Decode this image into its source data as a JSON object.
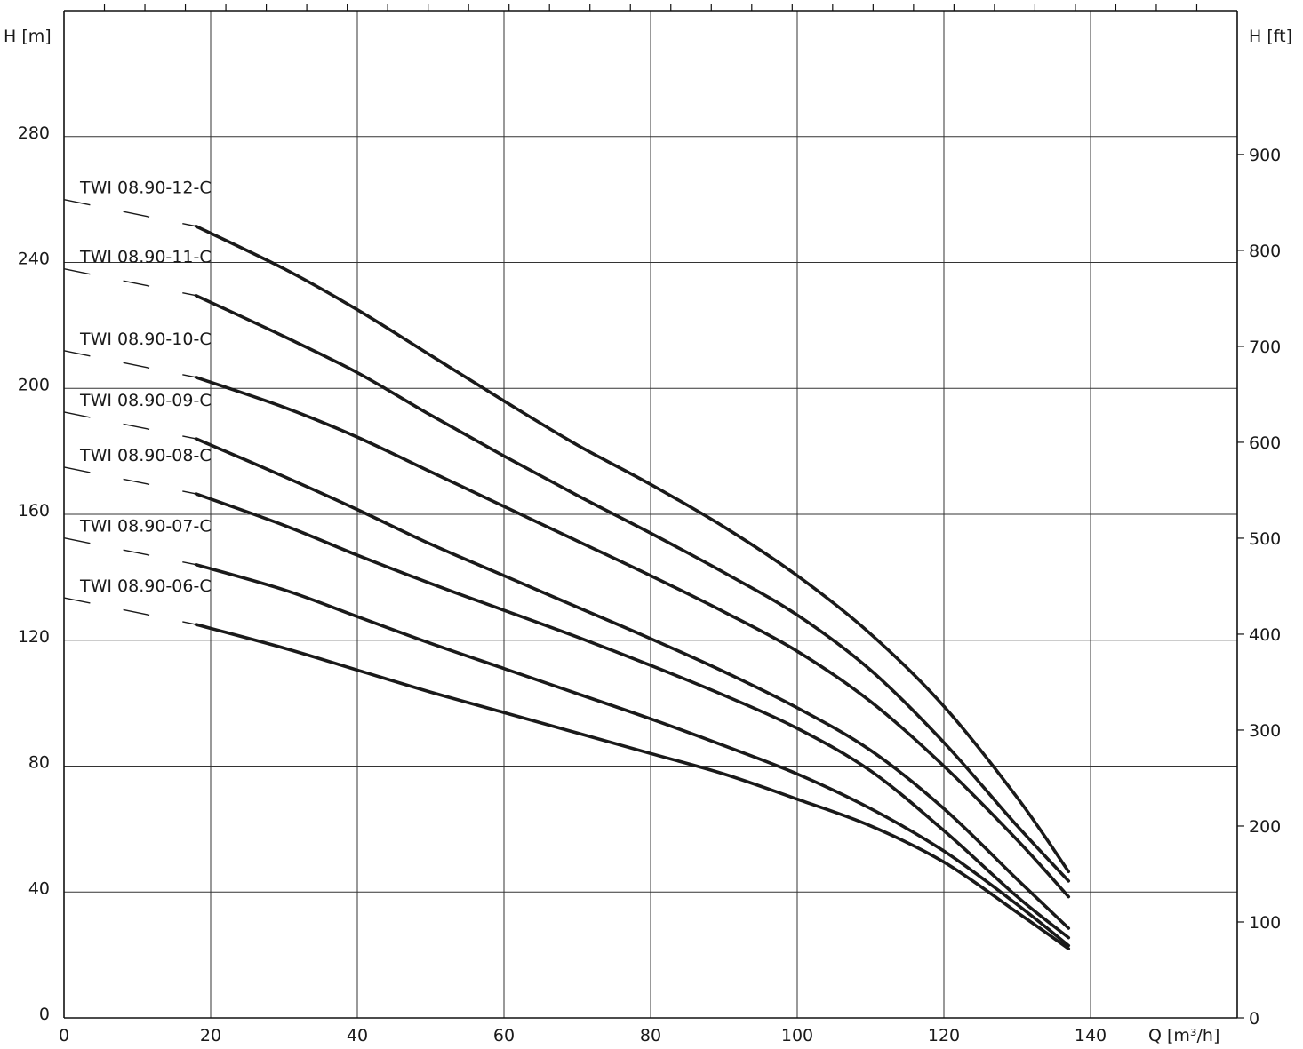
{
  "chart_data": {
    "type": "line",
    "xlabel": "Q [m³/h]",
    "ylabel": "H [m]",
    "ylabel_right": "H [ft]",
    "xlim": [
      0,
      160
    ],
    "ylim": [
      0,
      320
    ],
    "ylim_right": [
      0,
      1049.9
    ],
    "x_ticks": [
      0,
      20,
      40,
      60,
      80,
      100,
      120,
      140
    ],
    "y_ticks": [
      0,
      40,
      80,
      120,
      160,
      200,
      240,
      280
    ],
    "y_ticks_right": [
      0,
      100,
      200,
      300,
      400,
      500,
      600,
      700,
      800,
      900
    ],
    "grid": true,
    "series": [
      {
        "name": "TWI 08.90-12-C",
        "x": [
          18,
          30,
          40,
          50,
          60,
          70,
          80,
          90,
          100,
          110,
          120,
          130,
          137
        ],
        "y": [
          251.5,
          238,
          225,
          210.5,
          196,
          182,
          169.5,
          156,
          140.5,
          122,
          99,
          70,
          46.5
        ]
      },
      {
        "name": "TWI 08.90-11-C",
        "x": [
          18,
          30,
          40,
          50,
          60,
          70,
          80,
          90,
          100,
          110,
          120,
          130,
          137
        ],
        "y": [
          229.5,
          216.5,
          205,
          191.5,
          178.5,
          166,
          154,
          141.5,
          128,
          110.5,
          87.5,
          61,
          43.5
        ]
      },
      {
        "name": "TWI 08.90-10-C",
        "x": [
          18,
          30,
          40,
          50,
          60,
          70,
          80,
          90,
          100,
          110,
          120,
          130,
          137
        ],
        "y": [
          203.5,
          194,
          184.5,
          173.5,
          162.5,
          151.5,
          140.5,
          129,
          116.5,
          100.5,
          80,
          56.5,
          38.5
        ]
      },
      {
        "name": "TWI 08.90-09-C",
        "x": [
          18,
          30,
          40,
          50,
          60,
          70,
          80,
          90,
          100,
          110,
          120,
          130,
          137
        ],
        "y": [
          184,
          172,
          161.5,
          150.5,
          140.5,
          130.5,
          120.5,
          110,
          98.5,
          85,
          66.5,
          44,
          28.5
        ]
      },
      {
        "name": "TWI 08.90-08-C",
        "x": [
          18,
          30,
          40,
          50,
          60,
          70,
          80,
          90,
          100,
          110,
          120,
          130,
          137
        ],
        "y": [
          166.5,
          156.5,
          147,
          138,
          129.5,
          121,
          112,
          102.5,
          92,
          78.5,
          59.5,
          38.5,
          25.5
        ]
      },
      {
        "name": "TWI 08.90-07-C",
        "x": [
          18,
          30,
          40,
          50,
          60,
          70,
          80,
          90,
          100,
          110,
          120,
          130,
          137
        ],
        "y": [
          144,
          136,
          127.5,
          119,
          111,
          103,
          95,
          86.5,
          77.5,
          66.5,
          53,
          36,
          23
        ]
      },
      {
        "name": "TWI 08.90-06-C",
        "x": [
          18,
          30,
          40,
          50,
          60,
          70,
          80,
          90,
          100,
          110,
          120,
          130,
          137
        ],
        "y": [
          125,
          117.5,
          110.5,
          103.5,
          97,
          90.5,
          84,
          77.5,
          69.5,
          61,
          49.5,
          33.5,
          22
        ]
      }
    ]
  }
}
